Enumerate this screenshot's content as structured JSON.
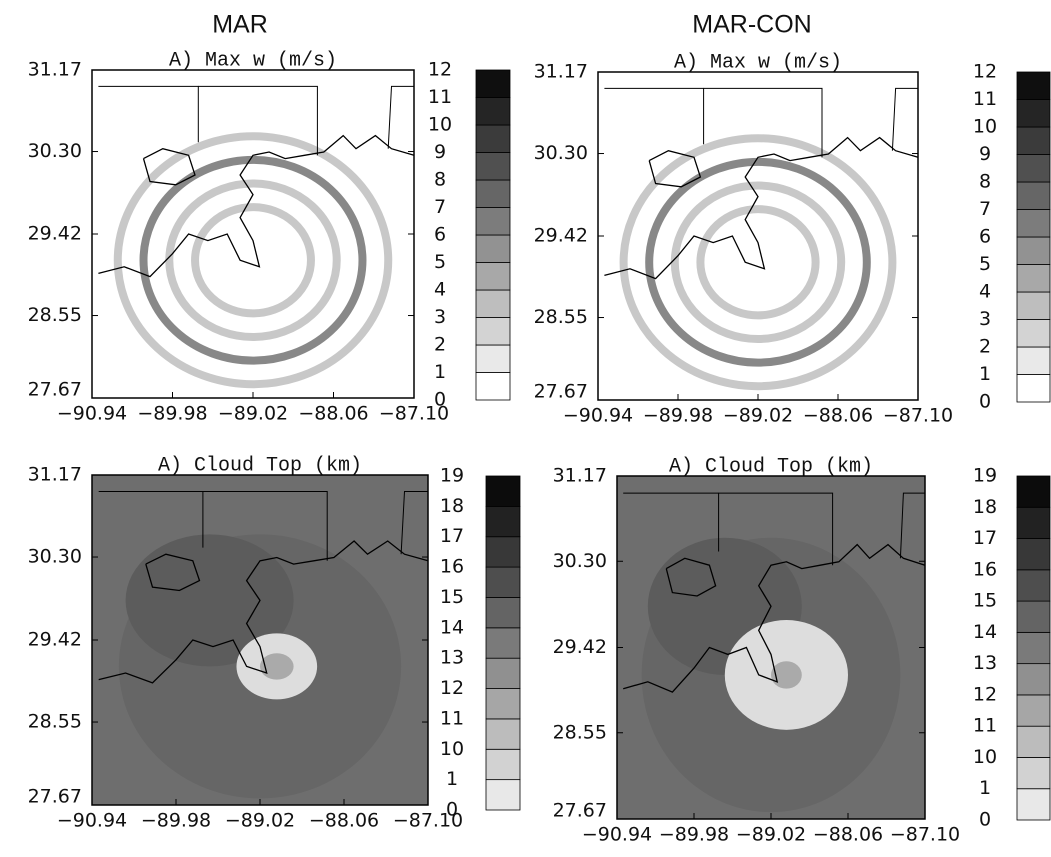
{
  "column_titles": [
    "MAR",
    "MAR-CON"
  ],
  "chart_data": [
    {
      "type": "map",
      "title": "A) Max w (m/s)",
      "xlim": [
        -90.94,
        -87.1
      ],
      "xticks": [
        {
          "value": -90.94,
          "label": "−90.94"
        },
        {
          "value": -89.98,
          "label": "−89.98"
        },
        {
          "value": -89.02,
          "label": "−89.02"
        },
        {
          "value": -88.06,
          "label": "−88.06"
        },
        {
          "value": -87.1,
          "label": "−87.10"
        }
      ],
      "ylim": [
        27.67,
        31.17
      ],
      "yticks": [
        27.67,
        28.55,
        29.42,
        {
          "value": 30.3,
          "label": "30.30"
        },
        31.17
      ],
      "colorbar": [
        0,
        1,
        2,
        3,
        4,
        5,
        6,
        7,
        8,
        9,
        10,
        11,
        12
      ]
    },
    {
      "type": "map",
      "title": "A) Max w (m/s)",
      "xlim": [
        -90.94,
        -87.1
      ],
      "xticks": [
        {
          "value": -90.94,
          "label": "−90.94"
        },
        {
          "value": -89.98,
          "label": "−89.98"
        },
        {
          "value": -89.02,
          "label": "−89.02"
        },
        {
          "value": -88.06,
          "label": "−88.06"
        },
        {
          "value": -87.1,
          "label": "−87.10"
        }
      ],
      "ylim": [
        27.67,
        31.17
      ],
      "yticks": [
        27.67,
        28.55,
        29.42,
        {
          "value": 30.3,
          "label": "30.30"
        },
        31.17
      ],
      "colorbar": [
        0,
        1,
        2,
        3,
        4,
        5,
        6,
        7,
        8,
        9,
        10,
        11,
        12
      ]
    },
    {
      "type": "map",
      "title": "A) Cloud Top (km)",
      "xlim": [
        -90.94,
        -87.1
      ],
      "xticks": [
        {
          "value": -90.94,
          "label": "−90.94"
        },
        {
          "value": -89.98,
          "label": "−89.98"
        },
        {
          "value": -89.02,
          "label": "−89.02"
        },
        {
          "value": -88.06,
          "label": "−88.06"
        },
        {
          "value": -87.1,
          "label": "−87.10"
        }
      ],
      "ylim": [
        27.67,
        31.17
      ],
      "yticks": [
        27.67,
        28.55,
        29.42,
        {
          "value": 30.3,
          "label": "30.30"
        },
        31.17
      ],
      "colorbar": [
        0,
        1,
        10,
        11,
        12,
        13,
        14,
        15,
        16,
        17,
        18,
        19
      ]
    },
    {
      "type": "map",
      "title": "A) Cloud Top (km)",
      "xlim": [
        -90.94,
        -87.1
      ],
      "xticks": [
        {
          "value": -90.94,
          "label": "−90.94"
        },
        {
          "value": -89.98,
          "label": "−89.98"
        },
        {
          "value": -89.02,
          "label": "−89.02"
        },
        {
          "value": -88.06,
          "label": "−88.06"
        },
        {
          "value": -87.1,
          "label": "−87.10"
        }
      ],
      "ylim": [
        27.67,
        31.17
      ],
      "yticks": [
        27.67,
        28.55,
        29.42,
        {
          "value": 30.3,
          "label": "30.30"
        },
        31.17
      ],
      "colorbar": [
        0,
        1,
        10,
        11,
        12,
        13,
        14,
        15,
        16,
        17,
        18,
        19
      ]
    }
  ]
}
